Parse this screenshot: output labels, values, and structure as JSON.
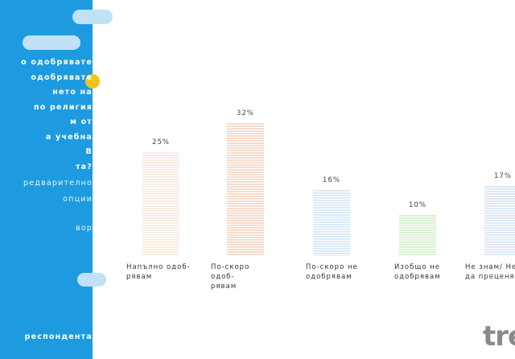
{
  "side_panel": {
    "question_lines": [
      "о одобрявате",
      "одобрявате",
      "нето на",
      "по религия",
      "м от",
      "а учебна",
      "В",
      "та?"
    ],
    "note_lines": [
      "редварително",
      "опции",
      "вор"
    ],
    "footer": "респондента"
  },
  "logo": "tre",
  "chart_data": {
    "type": "bar",
    "categories": [
      "Напълно одоб-\nрявам",
      "По-скоро одоб-\nрявам",
      "По-скоро не\nодобрявам",
      "Изобщо не\nодобрявам",
      "Не знам/ Не\nда преценя"
    ],
    "values": [
      25,
      32,
      16,
      10,
      17
    ],
    "value_labels": [
      "25%",
      "32%",
      "16%",
      "10%",
      "17%"
    ],
    "colors": [
      "#f7eee3",
      "#f3dccd",
      "#dceaf7",
      "#dcefd3",
      "#dfe8f5"
    ]
  }
}
